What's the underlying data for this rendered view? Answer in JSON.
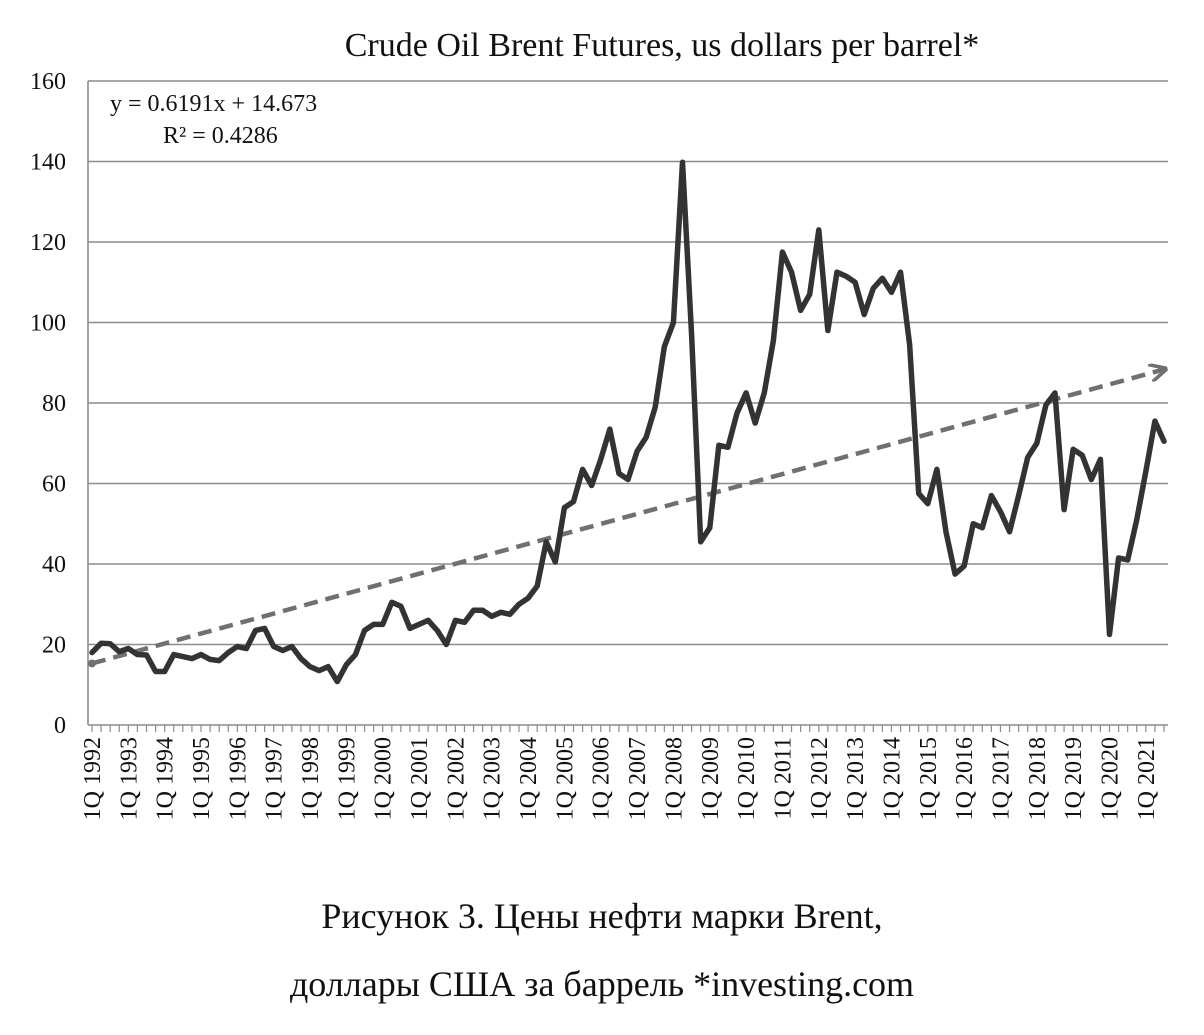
{
  "chart_data": {
    "type": "line",
    "title": "Crude Oil Brent Futures, us dollars per barrel*",
    "xlabel": "",
    "ylabel": "",
    "ylim": [
      0,
      160
    ],
    "yticks": [
      0,
      20,
      40,
      60,
      80,
      100,
      120,
      140,
      160
    ],
    "grid": "horizontal",
    "x_tick_labels": [
      "1Q 1992",
      "1Q 1993",
      "1Q 1994",
      "1Q 1995",
      "1Q 1996",
      "1Q 1997",
      "1Q 1998",
      "1Q 1999",
      "1Q 2000",
      "1Q 2001",
      "1Q 2002",
      "1Q 2003",
      "1Q 2004",
      "1Q 2005",
      "1Q 2006",
      "1Q 2007",
      "1Q 2008",
      "1Q 2009",
      "1Q 2010",
      "1Q 2011",
      "1Q 2012",
      "1Q 2013",
      "1Q 2014",
      "1Q 2015",
      "1Q 2016",
      "1Q 2017",
      "1Q 2018",
      "1Q 2019",
      "1Q 2020",
      "1Q 2021"
    ],
    "series": [
      {
        "color": "#333333",
        "values": [
          18.0,
          20.3,
          20.2,
          18.2,
          19.0,
          17.5,
          17.4,
          13.3,
          13.3,
          17.5,
          17.0,
          16.5,
          17.5,
          16.3,
          16.0,
          18.0,
          19.5,
          19.0,
          23.5,
          24.0,
          19.5,
          18.5,
          19.5,
          16.5,
          14.5,
          13.5,
          14.5,
          10.8,
          15.0,
          17.5,
          23.5,
          25.0,
          25.0,
          30.5,
          29.5,
          24.0,
          25.0,
          26.0,
          23.5,
          20.0,
          26.0,
          25.5,
          28.5,
          28.5,
          27.0,
          28.0,
          27.5,
          30.0,
          31.5,
          34.5,
          45.5,
          40.5,
          54.0,
          55.5,
          63.5,
          59.5,
          66.0,
          73.5,
          62.5,
          61.0,
          68.0,
          71.5,
          79.0,
          94.0,
          100.0,
          139.8,
          97.0,
          45.5,
          49.0,
          69.5,
          69.0,
          77.5,
          82.5,
          75.0,
          82.5,
          95.5,
          117.5,
          112.5,
          103.0,
          107.0,
          123.0,
          98.0,
          112.5,
          111.5,
          110.0,
          102.0,
          108.5,
          111.0,
          107.5,
          112.5,
          94.5,
          57.5,
          55.0,
          63.5,
          48.0,
          37.5,
          39.5,
          50.0,
          49.0,
          57.0,
          53.0,
          48.0,
          57.0,
          66.5,
          70.0,
          79.5,
          82.5,
          53.5,
          68.5,
          67.0,
          61.0,
          66.0,
          22.5,
          41.5,
          41.0,
          51.0,
          63.0,
          75.5,
          70.5
        ]
      }
    ],
    "trendline": {
      "type": "linear",
      "style": "dashed",
      "color": "#707070",
      "slope": 0.6191,
      "intercept": 14.673,
      "equation_label": "y = 0.6191x + 14.673",
      "r2_label": "R² = 0.4286"
    }
  },
  "caption": {
    "line1": "Рисунок 3. Цены нефти марки Brent,",
    "line2": "доллары США за баррель *investing.com"
  }
}
